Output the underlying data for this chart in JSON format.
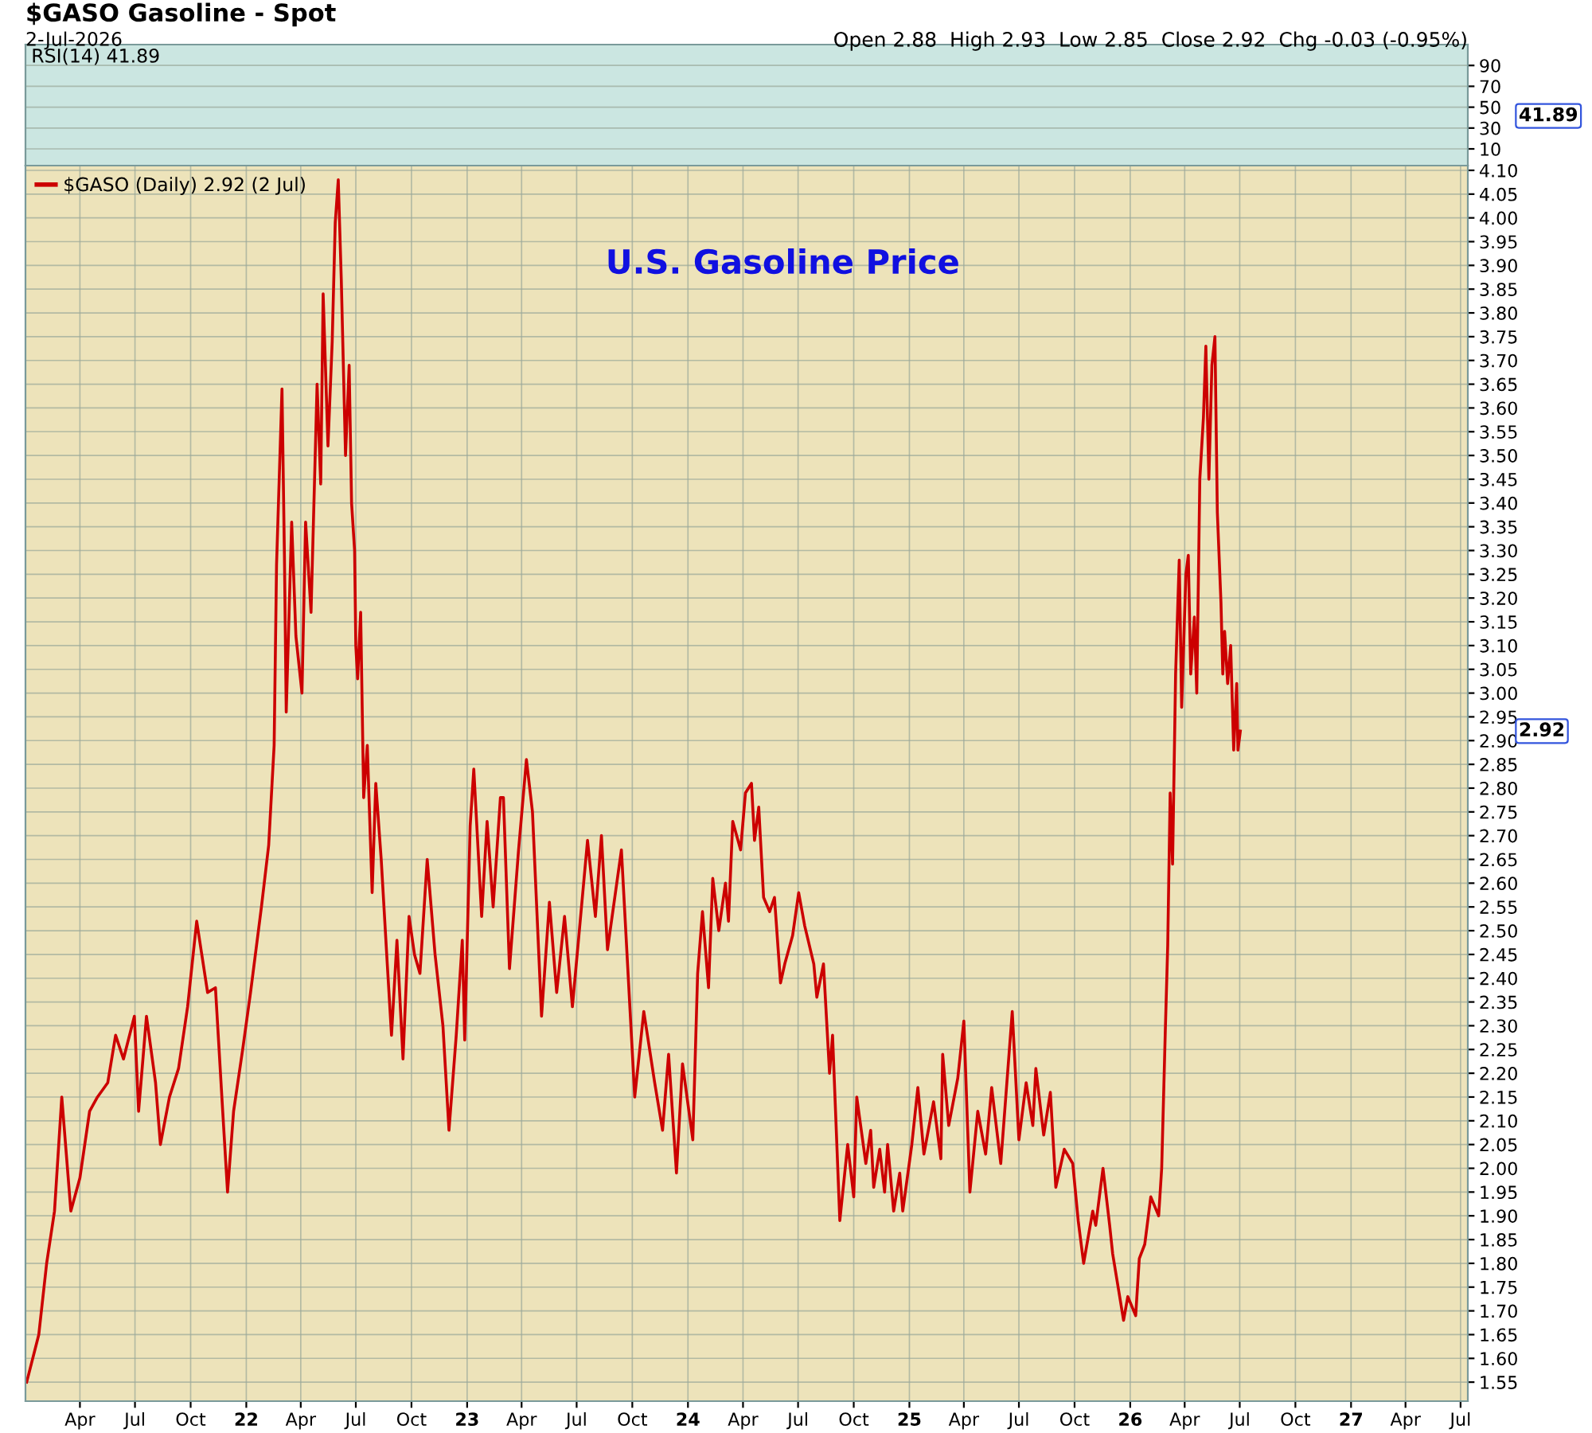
{
  "chart_data": [
    {
      "type": "line",
      "title": "$GASO Gasoline - Spot",
      "subtitle": "2-Jul-2026",
      "annotations": [
        "Open 2.88  High 2.93  Low 2.85  Close 2.92  Chg -0.03 (-0.95%)",
        "RSI(14) 41.89",
        "41.89"
      ],
      "xlim": [
        "2021-01-01",
        "2027-07-13"
      ],
      "ylim": [
        -6,
        110
      ],
      "yticks": [
        10,
        30,
        50,
        70,
        90
      ],
      "grid": true,
      "tick_labels": "y"
    },
    {
      "type": "line",
      "title": "U.S. Gasoline Price",
      "annotations": [
        "2.92"
      ],
      "series": [
        {
          "name": "$GASO (Daily) 2.92 (2 Jul)",
          "color": "#cc0000",
          "x": [
            "2021-01-03",
            "2021-01-23",
            "2021-02-05",
            "2021-02-18",
            "2021-03-02",
            "2021-03-17",
            "2021-04-01",
            "2021-04-17",
            "2021-04-30",
            "2021-05-17",
            "2021-05-30",
            "2021-06-12",
            "2021-06-30",
            "2021-07-07",
            "2021-07-20",
            "2021-08-04",
            "2021-08-12",
            "2021-08-27",
            "2021-09-11",
            "2021-09-26",
            "2021-10-11",
            "2021-10-29",
            "2021-11-11",
            "2021-11-23",
            "2021-12-01",
            "2021-12-11",
            "2021-12-26",
            "2022-01-08",
            "2022-01-26",
            "2022-02-07",
            "2022-02-16",
            "2022-02-20",
            "2022-03-01",
            "2022-03-05",
            "2022-03-08",
            "2022-03-17",
            "2022-03-24",
            "2022-04-03",
            "2022-04-09",
            "2022-04-18",
            "2022-04-28",
            "2022-05-04",
            "2022-05-08",
            "2022-05-16",
            "2022-05-23",
            "2022-05-28",
            "2022-06-02",
            "2022-06-07",
            "2022-06-14",
            "2022-06-20",
            "2022-06-24",
            "2022-06-29",
            "2022-07-01",
            "2022-07-04",
            "2022-07-09",
            "2022-07-14",
            "2022-07-20",
            "2022-07-28",
            "2022-08-03",
            "2022-08-12",
            "2022-08-22",
            "2022-08-29",
            "2022-09-07",
            "2022-09-17",
            "2022-09-27",
            "2022-10-06",
            "2022-10-15",
            "2022-10-27",
            "2022-11-09",
            "2022-11-22",
            "2022-12-02",
            "2022-12-14",
            "2022-12-24",
            "2022-12-28",
            "2023-01-06",
            "2023-01-12",
            "2023-01-25",
            "2023-02-03",
            "2023-02-13",
            "2023-02-25",
            "2023-03-02",
            "2023-03-12",
            "2023-03-27",
            "2023-04-09",
            "2023-04-19",
            "2023-05-04",
            "2023-05-17",
            "2023-05-29",
            "2023-06-11",
            "2023-06-24",
            "2023-07-19",
            "2023-08-01",
            "2023-08-11",
            "2023-08-21",
            "2023-09-13",
            "2023-10-05",
            "2023-10-20",
            "2023-11-07",
            "2023-11-20",
            "2023-11-30",
            "2023-12-13",
            "2023-12-23",
            "2024-01-09",
            "2024-01-17",
            "2024-01-25",
            "2024-02-04",
            "2024-02-11",
            "2024-02-21",
            "2024-03-03",
            "2024-03-08",
            "2024-03-15",
            "2024-03-28",
            "2024-04-05",
            "2024-04-15",
            "2024-04-20",
            "2024-04-27",
            "2024-05-05",
            "2024-05-15",
            "2024-05-23",
            "2024-06-02",
            "2024-06-09",
            "2024-06-22",
            "2024-07-02",
            "2024-07-12",
            "2024-07-27",
            "2024-08-01",
            "2024-08-12",
            "2024-08-22",
            "2024-08-27",
            "2024-09-08",
            "2024-09-21",
            "2024-10-01",
            "2024-10-06",
            "2024-10-21",
            "2024-10-29",
            "2024-11-03",
            "2024-11-13",
            "2024-11-21",
            "2024-11-26",
            "2024-12-06",
            "2024-12-16",
            "2024-12-21",
            "2025-01-05",
            "2025-01-15",
            "2025-01-25",
            "2025-02-10",
            "2025-02-22",
            "2025-02-25",
            "2025-03-07",
            "2025-03-22",
            "2025-04-01",
            "2025-04-11",
            "2025-04-24",
            "2025-05-07",
            "2025-05-17",
            "2025-06-01",
            "2025-06-20",
            "2025-07-01",
            "2025-07-13",
            "2025-07-24",
            "2025-07-29",
            "2025-08-11",
            "2025-08-22",
            "2025-08-31",
            "2025-09-14",
            "2025-09-28",
            "2025-10-07",
            "2025-10-16",
            "2025-10-31",
            "2025-11-05",
            "2025-11-17",
            "2025-11-28",
            "2025-12-03",
            "2025-12-21",
            "2025-12-28",
            "2026-01-10",
            "2026-01-16",
            "2026-01-25",
            "2026-02-04",
            "2026-02-17",
            "2026-02-22",
            "2026-02-28",
            "2026-03-04",
            "2026-03-08",
            "2026-03-12",
            "2026-03-17",
            "2026-03-23",
            "2026-03-27",
            "2026-04-03",
            "2026-04-07",
            "2026-04-11",
            "2026-04-17",
            "2026-04-21",
            "2026-04-26",
            "2026-05-02",
            "2026-05-06",
            "2026-05-11",
            "2026-05-16",
            "2026-05-21",
            "2026-05-25",
            "2026-05-31",
            "2026-06-03",
            "2026-06-06",
            "2026-06-11",
            "2026-06-16",
            "2026-06-21",
            "2026-06-26",
            "2026-06-28",
            "2026-07-02"
          ],
          "values": [
            1.55,
            1.65,
            1.8,
            1.91,
            2.15,
            1.91,
            1.98,
            2.12,
            2.15,
            2.18,
            2.28,
            2.23,
            2.32,
            2.12,
            2.32,
            2.18,
            2.05,
            2.15,
            2.21,
            2.34,
            2.52,
            2.37,
            2.38,
            2.12,
            1.95,
            2.12,
            2.25,
            2.37,
            2.55,
            2.68,
            2.89,
            3.27,
            3.64,
            3.29,
            2.96,
            3.36,
            3.12,
            3.0,
            3.36,
            3.17,
            3.65,
            3.44,
            3.84,
            3.52,
            3.74,
            3.99,
            4.08,
            3.87,
            3.5,
            3.69,
            3.4,
            3.3,
            3.1,
            3.03,
            3.17,
            2.78,
            2.89,
            2.58,
            2.81,
            2.65,
            2.43,
            2.28,
            2.48,
            2.23,
            2.53,
            2.45,
            2.41,
            2.65,
            2.45,
            2.3,
            2.08,
            2.28,
            2.48,
            2.27,
            2.72,
            2.84,
            2.53,
            2.73,
            2.55,
            2.78,
            2.78,
            2.42,
            2.67,
            2.86,
            2.75,
            2.32,
            2.56,
            2.37,
            2.53,
            2.34,
            2.69,
            2.53,
            2.7,
            2.46,
            2.67,
            2.15,
            2.33,
            2.18,
            2.08,
            2.24,
            1.99,
            2.22,
            2.06,
            2.41,
            2.54,
            2.38,
            2.61,
            2.5,
            2.6,
            2.52,
            2.73,
            2.67,
            2.79,
            2.81,
            2.69,
            2.76,
            2.57,
            2.54,
            2.57,
            2.39,
            2.43,
            2.49,
            2.58,
            2.51,
            2.43,
            2.36,
            2.43,
            2.2,
            2.28,
            1.89,
            2.05,
            1.94,
            2.15,
            2.01,
            2.08,
            1.96,
            2.04,
            1.95,
            2.05,
            1.91,
            1.99,
            1.91,
            2.05,
            2.17,
            2.03,
            2.14,
            2.02,
            2.24,
            2.09,
            2.19,
            2.31,
            1.95,
            2.12,
            2.03,
            2.17,
            2.01,
            2.33,
            2.06,
            2.18,
            2.09,
            2.21,
            2.07,
            2.16,
            1.96,
            2.04,
            2.01,
            1.89,
            1.8,
            1.91,
            1.88,
            2.0,
            1.88,
            1.82,
            1.68,
            1.73,
            1.69,
            1.81,
            1.84,
            1.94,
            1.9,
            2.0,
            2.29,
            2.47,
            2.79,
            2.64,
            3.04,
            3.28,
            2.97,
            3.25,
            3.29,
            3.04,
            3.16,
            3.0,
            3.45,
            3.58,
            3.73,
            3.45,
            3.69,
            3.75,
            3.38,
            3.19,
            3.04,
            3.13,
            3.02,
            3.1,
            2.88,
            3.02,
            2.88,
            2.92
          ]
        }
      ],
      "xlim": [
        "2021-01-01",
        "2027-07-13"
      ],
      "ylim": [
        1.51,
        4.11
      ],
      "xticks": [
        {
          "value": "2021-04-01",
          "label": "Apr"
        },
        {
          "value": "2021-07-01",
          "label": "Jul"
        },
        {
          "value": "2021-10-01",
          "label": "Oct"
        },
        {
          "value": "2022-01-01",
          "label": "22"
        },
        {
          "value": "2022-04-01",
          "label": "Apr"
        },
        {
          "value": "2022-07-01",
          "label": "Jul"
        },
        {
          "value": "2022-10-01",
          "label": "Oct"
        },
        {
          "value": "2023-01-01",
          "label": "23"
        },
        {
          "value": "2023-04-01",
          "label": "Apr"
        },
        {
          "value": "2023-07-01",
          "label": "Jul"
        },
        {
          "value": "2023-10-01",
          "label": "Oct"
        },
        {
          "value": "2024-01-01",
          "label": "24"
        },
        {
          "value": "2024-04-01",
          "label": "Apr"
        },
        {
          "value": "2024-07-01",
          "label": "Jul"
        },
        {
          "value": "2024-10-01",
          "label": "Oct"
        },
        {
          "value": "2025-01-01",
          "label": "25"
        },
        {
          "value": "2025-04-01",
          "label": "Apr"
        },
        {
          "value": "2025-07-01",
          "label": "Jul"
        },
        {
          "value": "2025-10-01",
          "label": "Oct"
        },
        {
          "value": "2026-01-01",
          "label": "26"
        },
        {
          "value": "2026-04-01",
          "label": "Apr"
        },
        {
          "value": "2026-07-01",
          "label": "Jul"
        },
        {
          "value": "2026-10-01",
          "label": "Oct"
        },
        {
          "value": "2027-01-01",
          "label": "27"
        },
        {
          "value": "2027-04-01",
          "label": "Apr"
        },
        {
          "value": "2027-07-01",
          "label": "Jul"
        }
      ],
      "yticks": [
        {
          "value": 1.55,
          "label": "1.55"
        },
        {
          "value": 1.6,
          "label": "1.60"
        },
        {
          "value": 1.65,
          "label": "1.65"
        },
        {
          "value": 1.7,
          "label": "1.70"
        },
        {
          "value": 1.75,
          "label": "1.75"
        },
        {
          "value": 1.8,
          "label": "1.80"
        },
        {
          "value": 1.85,
          "label": "1.85"
        },
        {
          "value": 1.9,
          "label": "1.90"
        },
        {
          "value": 1.95,
          "label": "1.95"
        },
        {
          "value": 2.0,
          "label": "2.00"
        },
        {
          "value": 2.05,
          "label": "2.05"
        },
        {
          "value": 2.1,
          "label": "2.10"
        },
        {
          "value": 2.15,
          "label": "2.15"
        },
        {
          "value": 2.2,
          "label": "2.20"
        },
        {
          "value": 2.25,
          "label": "2.25"
        },
        {
          "value": 2.3,
          "label": "2.30"
        },
        {
          "value": 2.35,
          "label": "2.35"
        },
        {
          "value": 2.4,
          "label": "2.40"
        },
        {
          "value": 2.45,
          "label": "2.45"
        },
        {
          "value": 2.5,
          "label": "2.50"
        },
        {
          "value": 2.55,
          "label": "2.55"
        },
        {
          "value": 2.6,
          "label": "2.60"
        },
        {
          "value": 2.65,
          "label": "2.65"
        },
        {
          "value": 2.7,
          "label": "2.70"
        },
        {
          "value": 2.75,
          "label": "2.75"
        },
        {
          "value": 2.8,
          "label": "2.80"
        },
        {
          "value": 2.85,
          "label": "2.85"
        },
        {
          "value": 2.9,
          "label": "2.90"
        },
        {
          "value": 2.95,
          "label": "2.95"
        },
        {
          "value": 3.0,
          "label": "3.00"
        },
        {
          "value": 3.05,
          "label": "3.05"
        },
        {
          "value": 3.1,
          "label": "3.10"
        },
        {
          "value": 3.15,
          "label": "3.15"
        },
        {
          "value": 3.2,
          "label": "3.20"
        },
        {
          "value": 3.25,
          "label": "3.25"
        },
        {
          "value": 3.3,
          "label": "3.30"
        },
        {
          "value": 3.35,
          "label": "3.35"
        },
        {
          "value": 3.4,
          "label": "3.40"
        },
        {
          "value": 3.45,
          "label": "3.45"
        },
        {
          "value": 3.5,
          "label": "3.50"
        },
        {
          "value": 3.55,
          "label": "3.55"
        },
        {
          "value": 3.6,
          "label": "3.60"
        },
        {
          "value": 3.65,
          "label": "3.65"
        },
        {
          "value": 3.7,
          "label": "3.70"
        },
        {
          "value": 3.75,
          "label": "3.75"
        },
        {
          "value": 3.8,
          "label": "3.80"
        },
        {
          "value": 3.85,
          "label": "3.85"
        },
        {
          "value": 3.9,
          "label": "3.90"
        },
        {
          "value": 3.95,
          "label": "3.95"
        },
        {
          "value": 4.0,
          "label": "4.00"
        },
        {
          "value": 4.05,
          "label": "4.05"
        },
        {
          "value": 4.1,
          "label": "4.10"
        }
      ],
      "grid": true,
      "legend": "top left",
      "marker": "none",
      "line_style": "solid"
    }
  ]
}
